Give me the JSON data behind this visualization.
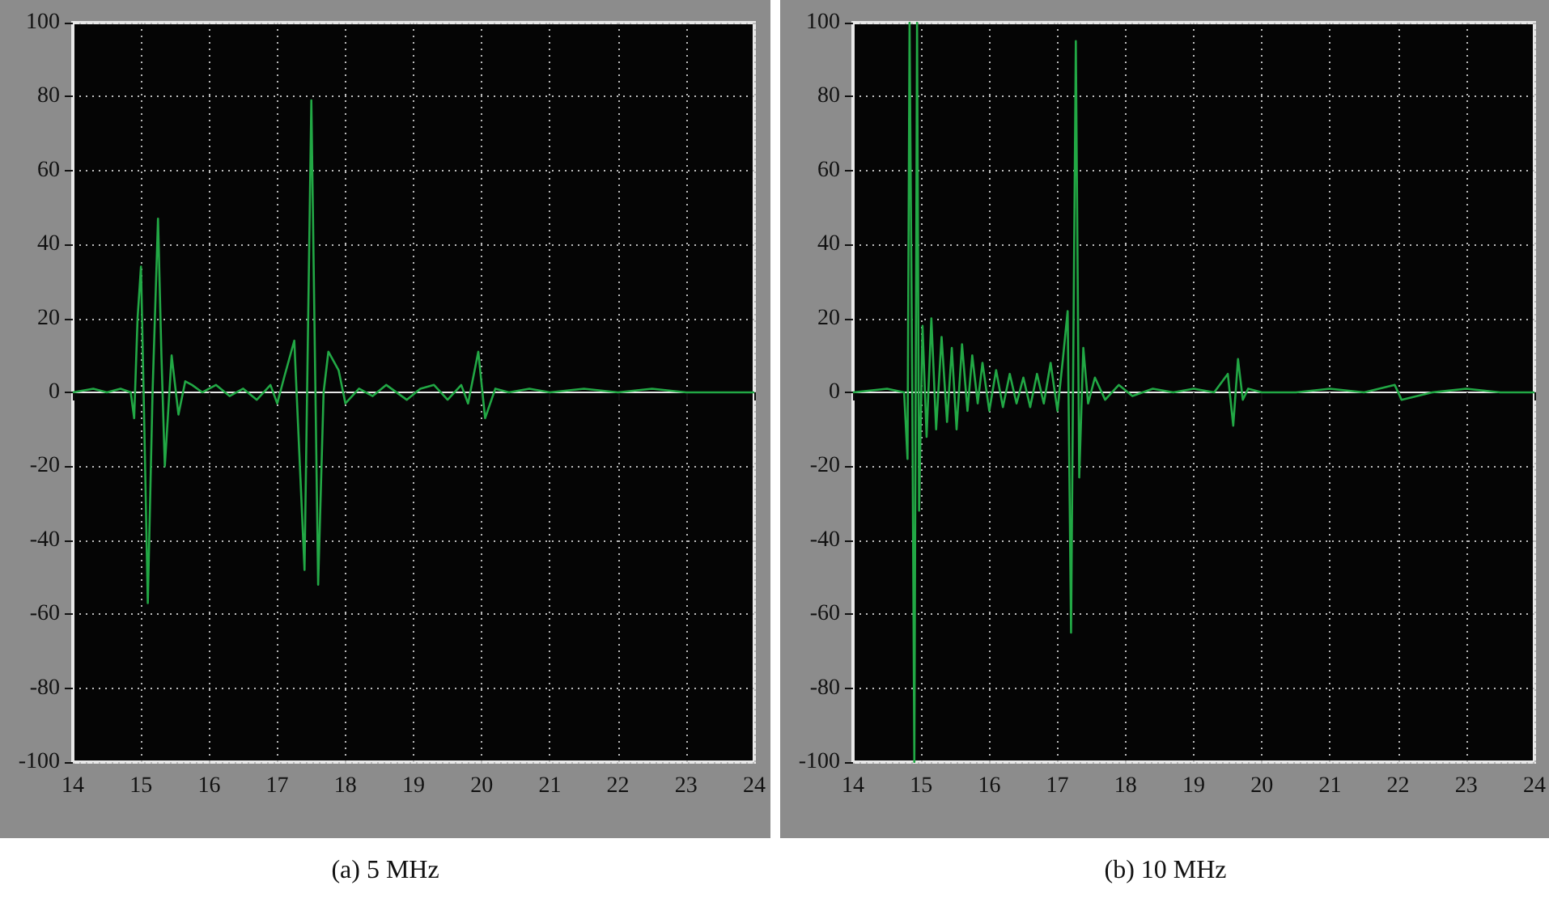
{
  "chart_data": [
    {
      "type": "line",
      "title": "(a) 5 MHz",
      "x": [
        14,
        14.3,
        14.5,
        14.7,
        14.85,
        14.9,
        14.95,
        15.0,
        15.05,
        15.1,
        15.17,
        15.25,
        15.3,
        15.35,
        15.45,
        15.55,
        15.65,
        15.75,
        15.9,
        16.1,
        16.3,
        16.5,
        16.7,
        16.9,
        17.0,
        17.1,
        17.25,
        17.4,
        17.5,
        17.6,
        17.68,
        17.75,
        17.9,
        18.0,
        18.2,
        18.4,
        18.6,
        18.9,
        19.1,
        19.3,
        19.5,
        19.7,
        19.8,
        19.95,
        20.05,
        20.2,
        20.4,
        20.7,
        21.0,
        21.5,
        22,
        22.5,
        23,
        23.5,
        24
      ],
      "series": [
        {
          "color": "#22a845",
          "values": [
            0,
            1,
            0,
            1,
            0,
            -7,
            20,
            34,
            -10,
            -57,
            0,
            47,
            10,
            -20,
            10,
            -6,
            3,
            2,
            0,
            2,
            -1,
            1,
            -2,
            2,
            -3,
            4,
            14,
            -48,
            79,
            -52,
            0,
            11,
            6,
            -3,
            1,
            -1,
            2,
            -2,
            1,
            2,
            -2,
            2,
            -3,
            11,
            -7,
            1,
            0,
            1,
            0,
            1,
            0,
            1,
            0,
            0,
            0
          ]
        }
      ],
      "xlim": [
        14,
        24
      ],
      "xticks": [
        14,
        15,
        16,
        17,
        18,
        19,
        20,
        21,
        22,
        23,
        24
      ],
      "ylim": [
        -100,
        100
      ],
      "yticks": [
        -100,
        -80,
        -60,
        -40,
        -20,
        0,
        20,
        40,
        60,
        80,
        100
      ],
      "grid": true,
      "marker": "none",
      "line_style": "solid"
    },
    {
      "type": "line",
      "title": "(b) 10 MHz",
      "x": [
        14,
        14.5,
        14.75,
        14.8,
        14.83,
        14.87,
        14.9,
        14.94,
        14.97,
        15.02,
        15.08,
        15.15,
        15.22,
        15.3,
        15.38,
        15.45,
        15.52,
        15.6,
        15.68,
        15.75,
        15.83,
        15.9,
        16.0,
        16.1,
        16.2,
        16.3,
        16.4,
        16.5,
        16.6,
        16.7,
        16.8,
        16.9,
        17.0,
        17.08,
        17.15,
        17.2,
        17.27,
        17.32,
        17.38,
        17.45,
        17.55,
        17.7,
        17.9,
        18.1,
        18.4,
        18.7,
        19.0,
        19.3,
        19.5,
        19.58,
        19.65,
        19.72,
        19.8,
        20.0,
        20.5,
        21.0,
        21.5,
        21.95,
        22.05,
        22.5,
        23,
        23.5,
        24
      ],
      "series": [
        {
          "color": "#22a845",
          "values": [
            0,
            1,
            0,
            -18,
            100,
            0,
            -100,
            100,
            -32,
            18,
            -12,
            20,
            -10,
            15,
            -8,
            12,
            -10,
            13,
            -5,
            10,
            -3,
            8,
            -5,
            6,
            -4,
            5,
            -3,
            4,
            -4,
            5,
            -3,
            8,
            -5,
            9,
            22,
            -65,
            95,
            -23,
            12,
            -3,
            4,
            -2,
            2,
            -1,
            1,
            0,
            1,
            0,
            5,
            -9,
            9,
            -2,
            1,
            0,
            0,
            1,
            0,
            2,
            -2,
            0,
            1,
            0,
            0
          ]
        }
      ],
      "xlim": [
        14,
        24
      ],
      "xticks": [
        14,
        15,
        16,
        17,
        18,
        19,
        20,
        21,
        22,
        23,
        24
      ],
      "ylim": [
        -100,
        100
      ],
      "yticks": [
        -100,
        -80,
        -60,
        -40,
        -20,
        0,
        20,
        40,
        60,
        80,
        100
      ],
      "grid": true,
      "marker": "none",
      "line_style": "solid"
    }
  ]
}
